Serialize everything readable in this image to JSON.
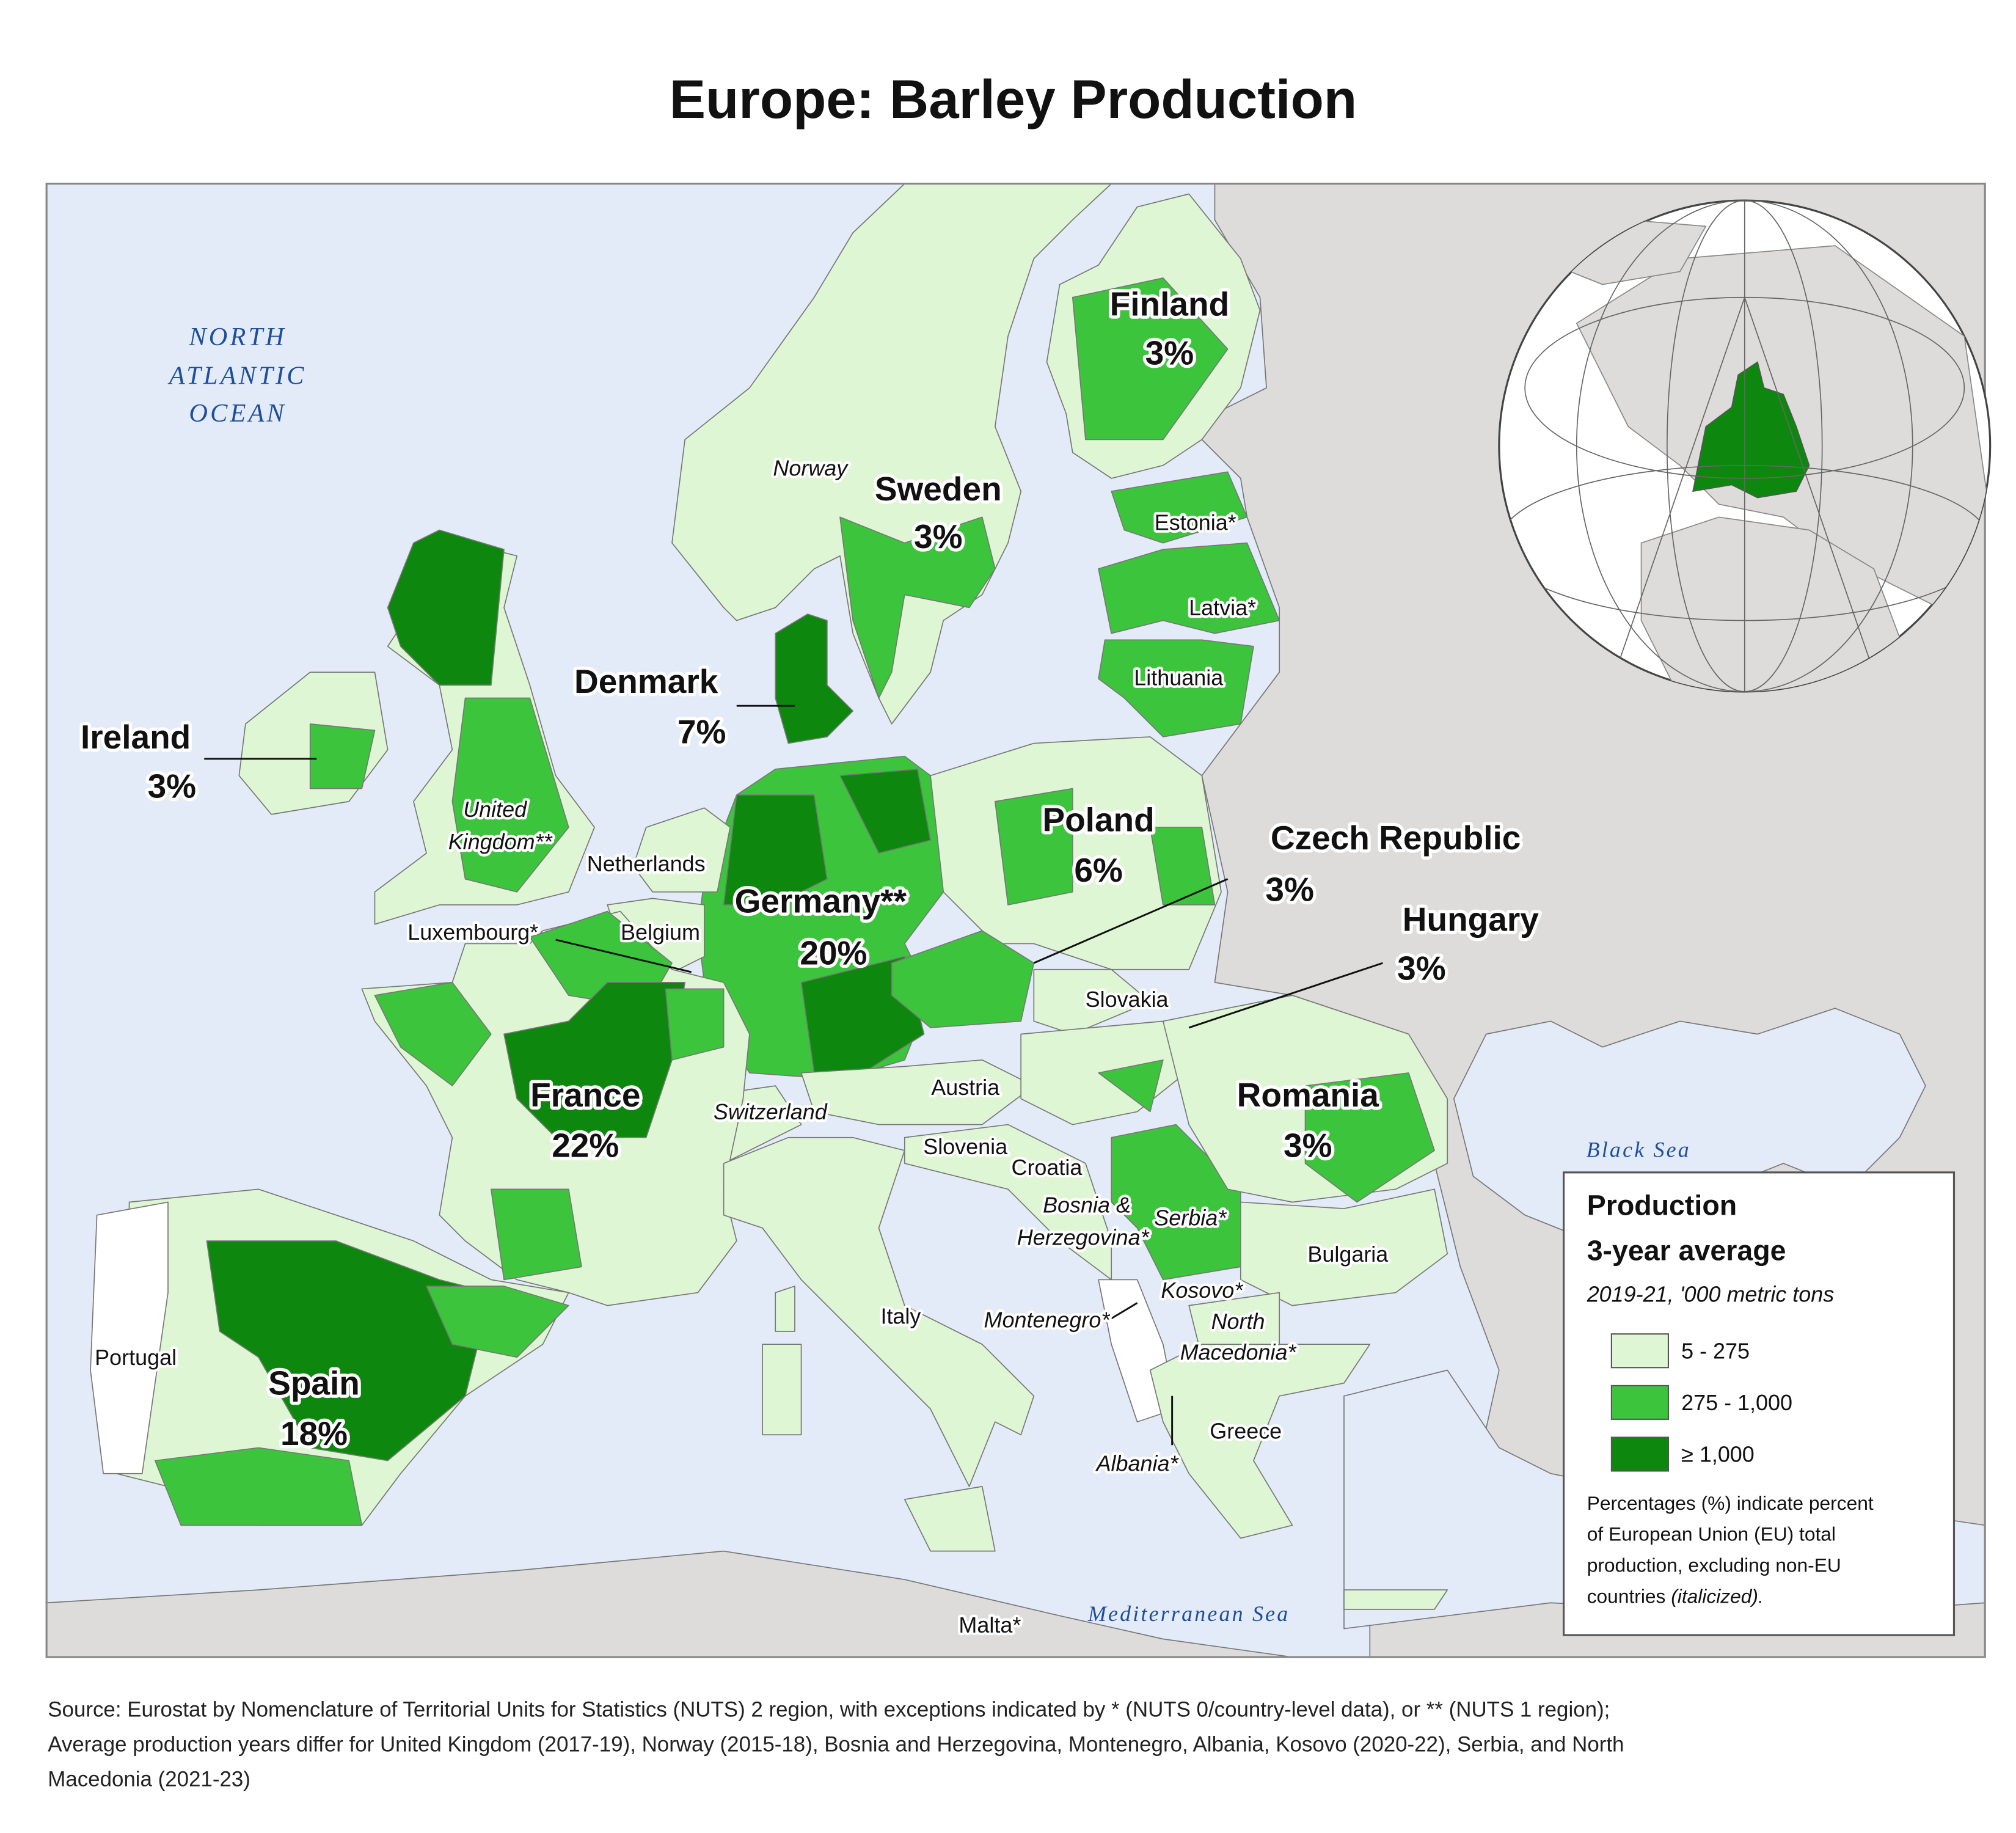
{
  "title": "Europe: Barley Production",
  "ocean_label": [
    "NORTH",
    "ATLANTIC",
    "OCEAN"
  ],
  "seas": [
    "Black Sea",
    "Mediterranean Sea"
  ],
  "major_labels": [
    {
      "name": "Finland",
      "share": "3%"
    },
    {
      "name": "Sweden",
      "share": "3%"
    },
    {
      "name": "Denmark",
      "share": "7%"
    },
    {
      "name": "Ireland",
      "share": "3%"
    },
    {
      "name": "Poland",
      "share": "6%"
    },
    {
      "name": "Czech Republic",
      "share": "3%"
    },
    {
      "name": "Hungary",
      "share": "3%"
    },
    {
      "name": "Germany**",
      "share": "20%"
    },
    {
      "name": "Romania",
      "share": "3%"
    },
    {
      "name": "France",
      "share": "22%"
    },
    {
      "name": "Spain",
      "share": "18%"
    }
  ],
  "minor_labels": [
    {
      "lines": [
        "Norway"
      ]
    },
    {
      "lines": [
        "Estonia*"
      ]
    },
    {
      "lines": [
        "Latvia*"
      ]
    },
    {
      "lines": [
        "Lithuania"
      ]
    },
    {
      "lines": [
        "United",
        "Kingdom**"
      ]
    },
    {
      "lines": [
        "Netherlands"
      ]
    },
    {
      "lines": [
        "Belgium"
      ]
    },
    {
      "lines": [
        "Luxembourg*"
      ]
    },
    {
      "lines": [
        "Slovakia"
      ]
    },
    {
      "lines": [
        "Austria"
      ]
    },
    {
      "lines": [
        "Switzerland"
      ]
    },
    {
      "lines": [
        "Slovenia"
      ]
    },
    {
      "lines": [
        "Croatia"
      ]
    },
    {
      "lines": [
        "Bosnia &",
        "Herzegovina*"
      ]
    },
    {
      "lines": [
        "Serbia*"
      ]
    },
    {
      "lines": [
        "Bulgaria"
      ]
    },
    {
      "lines": [
        "Kosovo*"
      ]
    },
    {
      "lines": [
        "North",
        "Macedonia*"
      ]
    },
    {
      "lines": [
        "Montenegro*"
      ]
    },
    {
      "lines": [
        "Italy"
      ]
    },
    {
      "lines": [
        "Portugal"
      ]
    },
    {
      "lines": [
        "Greece"
      ]
    },
    {
      "lines": [
        "Albania*"
      ]
    },
    {
      "lines": [
        "Malta*"
      ]
    }
  ],
  "legend": {
    "title": [
      "Production",
      "3-year average"
    ],
    "subtitle": "2019-21, '000 metric tons",
    "classes": [
      {
        "label": "5 - 275",
        "color": "#dff6d5"
      },
      {
        "label": "275 - 1,000",
        "color": "#3cc53c"
      },
      {
        "label": "≥ 1,000",
        "color": "#0e870e"
      }
    ],
    "note": {
      "lines": [
        "Percentages (%) indicate percent",
        "of European Union (EU) total",
        "production, excluding non-EU"
      ],
      "last": "countries",
      "emphasis": "(italicized)."
    }
  },
  "source": [
    "Source: Eurostat by Nomenclature of Territorial Units for Statistics (NUTS) 2 region, with exceptions indicated by * (NUTS 0/country-level data), or ** (NUTS 1 region);",
    "Average production years differ for United Kingdom (2017-19), Norway (2015-18), Bosnia and Herzegovina, Montenegro, Albania, Kosovo (2020-22), Serbia, and North",
    "Macedonia (2021-23)"
  ]
}
